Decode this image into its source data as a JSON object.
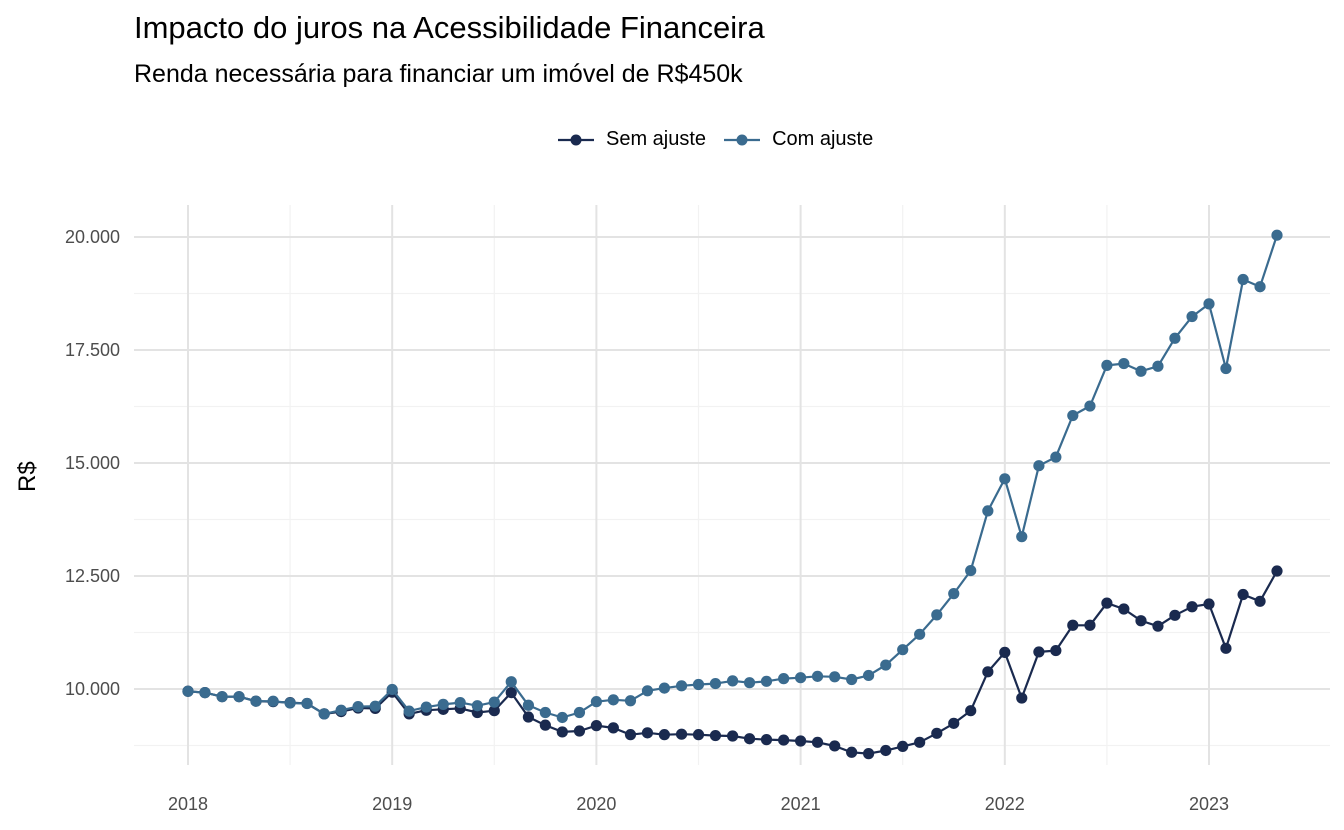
{
  "chart_data": {
    "type": "line",
    "title": "Impacto do juros na Acessibilidade Financeira",
    "subtitle": "Renda necessária para financiar um imóvel de R$450k",
    "ylabel": "R$",
    "xlabel": "",
    "ylim": [
      8200,
      20700
    ],
    "y_ticks": [
      10000,
      12500,
      15000,
      17500,
      20000
    ],
    "y_tick_labels": [
      "10.000",
      "12.500",
      "15.000",
      "17.500",
      "20.000"
    ],
    "x_ticks": [
      2018,
      2019,
      2020,
      2021,
      2022,
      2023
    ],
    "x_tick_labels": [
      "2018",
      "2019",
      "2020",
      "2021",
      "2022",
      "2023"
    ],
    "xlim": [
      2017.8,
      2023.6
    ],
    "grid": true,
    "legend_position": "top",
    "x": [
      2018.0,
      2018.083,
      2018.167,
      2018.25,
      2018.333,
      2018.417,
      2018.5,
      2018.583,
      2018.667,
      2018.75,
      2018.833,
      2018.917,
      2019.0,
      2019.083,
      2019.167,
      2019.25,
      2019.333,
      2019.417,
      2019.5,
      2019.583,
      2019.667,
      2019.75,
      2019.833,
      2019.917,
      2020.0,
      2020.083,
      2020.167,
      2020.25,
      2020.333,
      2020.417,
      2020.5,
      2020.583,
      2020.667,
      2020.75,
      2020.833,
      2020.917,
      2021.0,
      2021.083,
      2021.167,
      2021.25,
      2021.333,
      2021.417,
      2021.5,
      2021.583,
      2021.667,
      2021.75,
      2021.833,
      2021.917,
      2022.0,
      2022.083,
      2022.167,
      2022.25,
      2022.333,
      2022.417,
      2022.5,
      2022.583,
      2022.667,
      2022.75,
      2022.833,
      2022.917,
      2023.0,
      2023.083,
      2023.167,
      2023.25,
      2023.333
    ],
    "series": [
      {
        "name": "Sem ajuste",
        "color": "#1a2a4f",
        "values": [
          9950,
          9920,
          9830,
          9830,
          9730,
          9720,
          9700,
          9680,
          9450,
          9500,
          9580,
          9570,
          9930,
          9450,
          9530,
          9550,
          9570,
          9480,
          9520,
          9920,
          9380,
          9200,
          9050,
          9070,
          9190,
          9140,
          8990,
          9030,
          8990,
          9000,
          8990,
          8970,
          8960,
          8900,
          8880,
          8870,
          8850,
          8820,
          8740,
          8600,
          8570,
          8640,
          8730,
          8820,
          9020,
          9240,
          9520,
          10380,
          10810,
          9800,
          10820,
          10850,
          11410,
          11410,
          11900,
          11770,
          11510,
          11390,
          11630,
          11820,
          11880,
          10900,
          12090,
          11940,
          12610
        ]
      },
      {
        "name": "Com ajuste",
        "color": "#3a6b8f",
        "values": [
          9950,
          9920,
          9830,
          9830,
          9730,
          9730,
          9690,
          9680,
          9450,
          9530,
          9610,
          9620,
          9990,
          9510,
          9600,
          9660,
          9700,
          9630,
          9710,
          10160,
          9640,
          9480,
          9370,
          9480,
          9720,
          9760,
          9740,
          9960,
          10020,
          10070,
          10100,
          10120,
          10180,
          10140,
          10170,
          10230,
          10250,
          10280,
          10270,
          10210,
          10300,
          10530,
          10870,
          11210,
          11640,
          12110,
          12620,
          13940,
          14650,
          13370,
          14940,
          15130,
          16050,
          16260,
          17160,
          17200,
          17030,
          17140,
          17760,
          18240,
          18520,
          17090,
          19060,
          18900,
          20040
        ]
      }
    ]
  }
}
